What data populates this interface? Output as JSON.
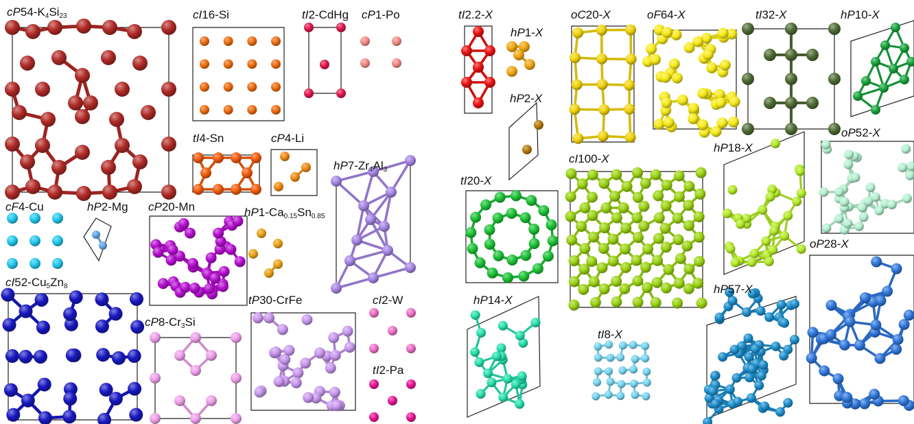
{
  "structures": [
    {
      "id": "k4si23",
      "panel": "left",
      "pearson": "cP",
      "count": "54",
      "formula": [
        "K",
        {
          "sub": "4"
        },
        "Si",
        {
          "sub": "23"
        }
      ],
      "color": "#b02a26"
    },
    {
      "id": "si",
      "panel": "left",
      "pearson": "cI",
      "count": "16",
      "formula": [
        "Si"
      ],
      "color": "#ef6c10"
    },
    {
      "id": "cdhg",
      "panel": "left",
      "pearson": "tI",
      "count": "2",
      "formula": [
        "CdHg"
      ],
      "color": "#e0174d"
    },
    {
      "id": "po",
      "panel": "left",
      "pearson": "cP",
      "count": "1",
      "formula": [
        "Po"
      ],
      "color": "#f48a84"
    },
    {
      "id": "sn",
      "panel": "left",
      "pearson": "tI",
      "count": "4",
      "formula": [
        "Sn"
      ],
      "color": "#f25a0d"
    },
    {
      "id": "li",
      "panel": "left",
      "pearson": "cP",
      "count": "4",
      "formula": [
        "Li"
      ],
      "color": "#f08a12"
    },
    {
      "id": "zr4al3",
      "panel": "left",
      "pearson": "hP",
      "count": "7",
      "formula": [
        "Zr",
        {
          "sub": "4"
        },
        "Al",
        {
          "sub": "3"
        }
      ],
      "color": "#a585e4"
    },
    {
      "id": "cu",
      "panel": "left",
      "pearson": "cF",
      "count": "4",
      "formula": [
        "Cu"
      ],
      "color": "#21c7ee"
    },
    {
      "id": "mg",
      "panel": "left",
      "pearson": "hP",
      "count": "2",
      "formula": [
        "Mg"
      ],
      "color": "#5fa3e8"
    },
    {
      "id": "mn",
      "panel": "left",
      "pearson": "cP",
      "count": "20",
      "formula": [
        "Mn"
      ],
      "color": "#b50fcf"
    },
    {
      "id": "ca015sn085",
      "panel": "left",
      "pearson": "hP",
      "count": "1",
      "formula": [
        "Ca",
        {
          "sub": "0.15"
        },
        "Sn",
        {
          "sub": "0.85"
        }
      ],
      "color": "#eba316"
    },
    {
      "id": "cu5zn8",
      "panel": "left",
      "pearson": "cI",
      "count": "52",
      "formula": [
        "Cu",
        {
          "sub": "5"
        },
        "Zn",
        {
          "sub": "8"
        }
      ],
      "color": "#1818c2"
    },
    {
      "id": "cr3si",
      "panel": "left",
      "pearson": "cP",
      "count": "8",
      "formula": [
        "Cr",
        {
          "sub": "3"
        },
        "Si"
      ],
      "color": "#eea0ea"
    },
    {
      "id": "crfe",
      "panel": "left",
      "pearson": "tP",
      "count": "30",
      "formula": [
        "CrFe"
      ],
      "color": "#c897ee"
    },
    {
      "id": "w",
      "panel": "left",
      "pearson": "cI",
      "count": "2",
      "formula": [
        "W"
      ],
      "color": "#ee6fc7"
    },
    {
      "id": "pa",
      "panel": "left",
      "pearson": "tI",
      "count": "2",
      "formula": [
        "Pa"
      ],
      "color": "#e81593"
    },
    {
      "id": "x-ti2.2",
      "panel": "right",
      "pearson": "tI",
      "count": "2.2",
      "formula": [
        {
          "it": "X"
        }
      ],
      "color": "#ee1111"
    },
    {
      "id": "x-hp1",
      "panel": "right",
      "pearson": "hP",
      "count": "1",
      "formula": [
        {
          "it": "X"
        }
      ],
      "color": "#f2a713"
    },
    {
      "id": "x-hp2",
      "panel": "right",
      "pearson": "hP",
      "count": "2",
      "formula": [
        {
          "it": "X"
        }
      ],
      "color": "#b47a0c"
    },
    {
      "id": "x-oc20",
      "panel": "right",
      "pearson": "oC",
      "count": "20",
      "formula": [
        {
          "it": "X"
        }
      ],
      "color": "#f1d30b"
    },
    {
      "id": "x-of64",
      "panel": "right",
      "pearson": "oF",
      "count": "64",
      "formula": [
        {
          "it": "X"
        }
      ],
      "color": "#f7ea19"
    },
    {
      "id": "x-ti32",
      "panel": "right",
      "pearson": "tI",
      "count": "32",
      "formula": [
        {
          "it": "X"
        }
      ],
      "color": "#4e6b34"
    },
    {
      "id": "x-hp10",
      "panel": "right",
      "pearson": "hP",
      "count": "10",
      "formula": [
        {
          "it": "X"
        }
      ],
      "color": "#16a43b"
    },
    {
      "id": "x-ti20",
      "panel": "right",
      "pearson": "tI",
      "count": "20",
      "formula": [
        {
          "it": "X"
        }
      ],
      "color": "#1cc235"
    },
    {
      "id": "x-ci100",
      "panel": "right",
      "pearson": "cI",
      "count": "100",
      "formula": [
        {
          "it": "X"
        }
      ],
      "color": "#9bd312"
    },
    {
      "id": "x-hp18",
      "panel": "right",
      "pearson": "hP",
      "count": "18",
      "formula": [
        {
          "it": "X"
        }
      ],
      "color": "#b3ea26"
    },
    {
      "id": "x-op52",
      "panel": "right",
      "pearson": "oP",
      "count": "52",
      "formula": [
        {
          "it": "X"
        }
      ],
      "color": "#b6f0d2"
    },
    {
      "id": "x-hp14",
      "panel": "right",
      "pearson": "hP",
      "count": "14",
      "formula": [
        {
          "it": "X"
        }
      ],
      "color": "#26e0ad"
    },
    {
      "id": "x-ti8",
      "panel": "right",
      "pearson": "tI",
      "count": "8",
      "formula": [
        {
          "it": "X"
        }
      ],
      "color": "#74d4ef"
    },
    {
      "id": "x-hp57",
      "panel": "right",
      "pearson": "hP",
      "count": "57",
      "formula": [
        {
          "it": "X"
        }
      ],
      "color": "#1c8ecc"
    },
    {
      "id": "x-op28",
      "panel": "right",
      "pearson": "oP",
      "count": "28",
      "formula": [
        {
          "it": "X"
        }
      ],
      "color": "#3077db"
    }
  ]
}
